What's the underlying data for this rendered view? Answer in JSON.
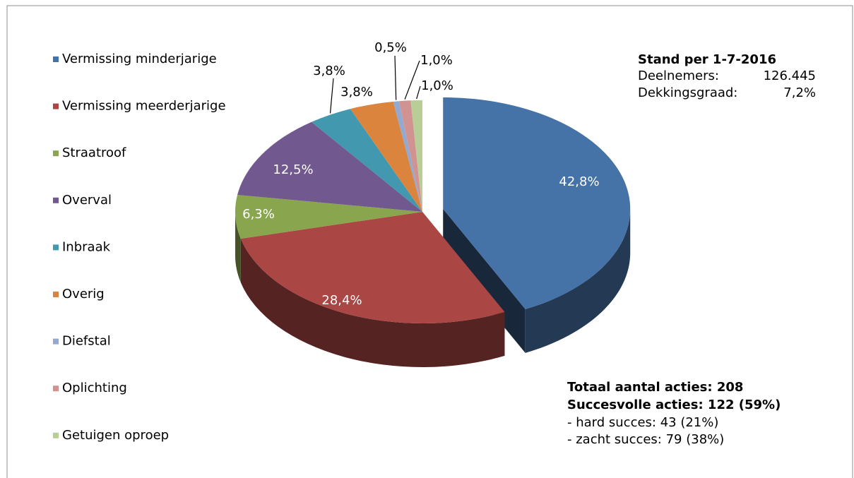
{
  "chart_data": {
    "type": "pie",
    "categories": [
      "Vermissing minderjarige",
      "Vermissing meerderjarige",
      "Straatroof",
      "Overval",
      "Inbraak",
      "Overig",
      "Diefstal",
      "Oplichting",
      "Getuigen oproep"
    ],
    "values": [
      42.8,
      28.4,
      6.3,
      12.5,
      3.8,
      3.8,
      0.5,
      1.0,
      1.0
    ],
    "value_labels": [
      "42,8%",
      "28,4%",
      "6,3%",
      "12,5%",
      "3,8%",
      "3,8%",
      "0,5%",
      "1,0%",
      "1,0%"
    ],
    "colors": [
      "#4572a7",
      "#aa4643",
      "#89a54e",
      "#71588f",
      "#4198af",
      "#db843d",
      "#93a9cf",
      "#d19392",
      "#b9cd96"
    ],
    "legend": "left",
    "annotations": {
      "stand": {
        "title": "Stand per 1-7-2016",
        "rows": [
          [
            "Deelnemers:",
            "126.445"
          ],
          [
            "Dekkingsgraad:",
            "7,2%"
          ]
        ]
      },
      "acties": {
        "bold": [
          "Totaal aantal acties: 208",
          "Succesvolle acties: 122 (59%)"
        ],
        "lines": [
          "- hard succes: 43 (21%)",
          "- zacht succes: 79 (38%)"
        ]
      }
    }
  }
}
